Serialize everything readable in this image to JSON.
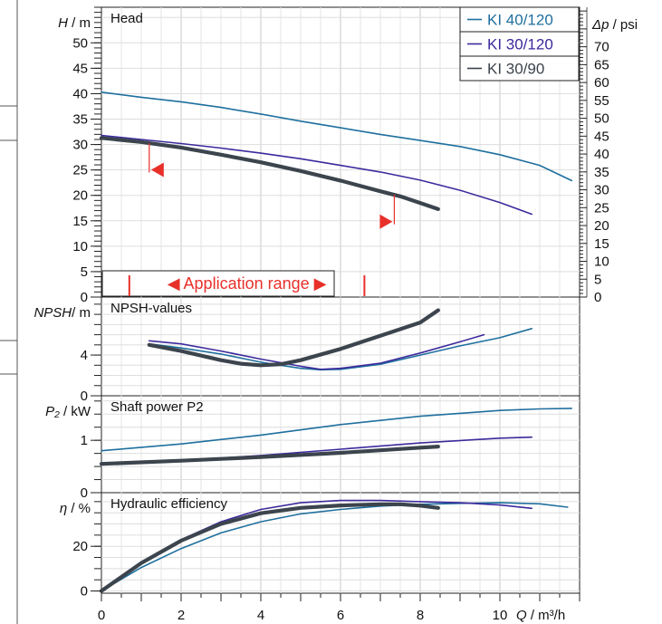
{
  "chart_data": {
    "type": "line",
    "x_axis": {
      "label": "Q / m³/h",
      "label_var": "Q",
      "label_unit": " / m³/h",
      "range": [
        0,
        12
      ],
      "ticks": [
        0,
        2,
        4,
        6,
        8,
        10
      ]
    },
    "legend": {
      "placement": "top-right",
      "entries": [
        {
          "name": "KI 40/120",
          "color": "#1f6f9e"
        },
        {
          "name": "KI 30/120",
          "color": "#3d2a9c"
        },
        {
          "name": "KI 30/90",
          "color": "#3c444d"
        }
      ]
    },
    "panels": [
      {
        "id": "head",
        "title": "Head",
        "ylabel_var": "H",
        "ylabel_unit": " / m",
        "ylim": [
          0,
          57
        ],
        "yticks": [
          0,
          5,
          10,
          15,
          20,
          25,
          30,
          35,
          40,
          45,
          50
        ],
        "right_axis": {
          "label_var": "Δp",
          "label_unit": " / psi",
          "factor": 1.422,
          "ticks": [
            0,
            5,
            10,
            15,
            20,
            25,
            30,
            35,
            40,
            45,
            50,
            55,
            60,
            65,
            70
          ]
        },
        "series": [
          {
            "name": "KI 40/120",
            "points": [
              [
                0,
                40.3
              ],
              [
                1,
                39.3
              ],
              [
                2,
                38.4
              ],
              [
                3,
                37.3
              ],
              [
                4,
                36.0
              ],
              [
                5,
                34.6
              ],
              [
                6,
                33.3
              ],
              [
                7,
                32.0
              ],
              [
                8,
                30.8
              ],
              [
                9,
                29.6
              ],
              [
                10,
                28.0
              ],
              [
                11,
                25.9
              ],
              [
                11.8,
                22.9
              ]
            ]
          },
          {
            "name": "KI 30/120",
            "points": [
              [
                0,
                31.8
              ],
              [
                1,
                31.0
              ],
              [
                2,
                30.2
              ],
              [
                3,
                29.3
              ],
              [
                4,
                28.3
              ],
              [
                5,
                27.2
              ],
              [
                6,
                25.9
              ],
              [
                7,
                24.6
              ],
              [
                8,
                23.0
              ],
              [
                9,
                21.0
              ],
              [
                10,
                18.6
              ],
              [
                10.8,
                16.3
              ]
            ]
          },
          {
            "name": "KI 30/90",
            "points": [
              [
                0,
                31.3
              ],
              [
                1,
                30.5
              ],
              [
                2,
                29.4
              ],
              [
                3,
                28.0
              ],
              [
                4,
                26.5
              ],
              [
                5,
                24.8
              ],
              [
                6,
                22.9
              ],
              [
                7,
                20.8
              ],
              [
                7.5,
                19.8
              ],
              [
                8,
                18.5
              ],
              [
                8.45,
                17.3
              ]
            ]
          }
        ],
        "markers": [
          {
            "x": 1.2,
            "y": 24.5,
            "dir": "left"
          },
          {
            "x": 7.35,
            "y": 14.3,
            "dir": "right"
          }
        ],
        "range_box": {
          "text": "Application range",
          "x_start": 0.7,
          "x_end": 6.6
        }
      },
      {
        "id": "npsh",
        "title": "NPSH-values",
        "ylabel_var": "NPSH",
        "ylabel_unit": "/ m",
        "ylim": [
          0,
          9.7
        ],
        "yticks": [
          0,
          4
        ],
        "series": [
          {
            "name": "KI 40/120",
            "points": [
              [
                1.2,
                5.1
              ],
              [
                2,
                4.7
              ],
              [
                3,
                4.1
              ],
              [
                4,
                3.3
              ],
              [
                5,
                2.7
              ],
              [
                5.5,
                2.55
              ],
              [
                6,
                2.6
              ],
              [
                7,
                3.1
              ],
              [
                8,
                4.0
              ],
              [
                9,
                4.9
              ],
              [
                10,
                5.7
              ],
              [
                10.8,
                6.6
              ]
            ]
          },
          {
            "name": "KI 30/120",
            "points": [
              [
                1.2,
                5.4
              ],
              [
                2,
                5.1
              ],
              [
                3,
                4.4
              ],
              [
                4,
                3.6
              ],
              [
                5,
                2.9
              ],
              [
                5.5,
                2.6
              ],
              [
                6,
                2.7
              ],
              [
                7,
                3.2
              ],
              [
                8,
                4.2
              ],
              [
                9,
                5.3
              ],
              [
                9.6,
                6.0
              ]
            ]
          },
          {
            "name": "KI 30/90",
            "points": [
              [
                1.2,
                5.0
              ],
              [
                2,
                4.4
              ],
              [
                3,
                3.5
              ],
              [
                3.5,
                3.15
              ],
              [
                4,
                3.0
              ],
              [
                4.5,
                3.1
              ],
              [
                5,
                3.5
              ],
              [
                6,
                4.6
              ],
              [
                7,
                5.9
              ],
              [
                8,
                7.2
              ],
              [
                8.45,
                8.4
              ]
            ]
          }
        ]
      },
      {
        "id": "power",
        "title": "Shaft power P2",
        "ylabel_var": "P₂",
        "ylabel_unit": " / kW",
        "ylim": [
          0,
          1.85
        ],
        "yticks": [
          0,
          1
        ],
        "series": [
          {
            "name": "KI 40/120",
            "points": [
              [
                0,
                0.8
              ],
              [
                2,
                0.93
              ],
              [
                4,
                1.1
              ],
              [
                6,
                1.3
              ],
              [
                8,
                1.46
              ],
              [
                10,
                1.57
              ],
              [
                11,
                1.6
              ],
              [
                11.8,
                1.61
              ]
            ]
          },
          {
            "name": "KI 30/120",
            "points": [
              [
                0,
                0.55
              ],
              [
                2,
                0.61
              ],
              [
                4,
                0.71
              ],
              [
                6,
                0.83
              ],
              [
                8,
                0.95
              ],
              [
                10,
                1.04
              ],
              [
                10.8,
                1.06
              ]
            ]
          },
          {
            "name": "KI 30/90",
            "points": [
              [
                0,
                0.55
              ],
              [
                2,
                0.61
              ],
              [
                4,
                0.68
              ],
              [
                6,
                0.76
              ],
              [
                8,
                0.86
              ],
              [
                8.45,
                0.88
              ]
            ]
          }
        ]
      },
      {
        "id": "efficiency",
        "title": "Hydraulic efficiency",
        "ylabel_var": "η",
        "ylabel_unit": " / %",
        "ylim": [
          -1,
          44
        ],
        "yticks": [
          0,
          20
        ],
        "series": [
          {
            "name": "KI 40/120",
            "points": [
              [
                0,
                0
              ],
              [
                1,
                10.5
              ],
              [
                2,
                19
              ],
              [
                3,
                26
              ],
              [
                4,
                31
              ],
              [
                5,
                34.5
              ],
              [
                6,
                36.5
              ],
              [
                7,
                38
              ],
              [
                8,
                38.8
              ],
              [
                9,
                39.2
              ],
              [
                10,
                39.5
              ],
              [
                11,
                39
              ],
              [
                11.7,
                37.5
              ]
            ]
          },
          {
            "name": "KI 30/120",
            "points": [
              [
                0,
                0
              ],
              [
                1,
                12.5
              ],
              [
                2,
                23
              ],
              [
                3,
                31
              ],
              [
                4,
                36.5
              ],
              [
                5,
                39.5
              ],
              [
                6,
                40.5
              ],
              [
                7,
                40.5
              ],
              [
                8,
                40
              ],
              [
                9,
                39.5
              ],
              [
                10,
                38.5
              ],
              [
                10.8,
                37
              ]
            ]
          },
          {
            "name": "KI 30/90",
            "points": [
              [
                0,
                0
              ],
              [
                1,
                12.5
              ],
              [
                2,
                22.5
              ],
              [
                3,
                30
              ],
              [
                4,
                34.8
              ],
              [
                5,
                37.2
              ],
              [
                6,
                38.3
              ],
              [
                7,
                38.8
              ],
              [
                7.5,
                38.8
              ],
              [
                8,
                38.2
              ],
              [
                8.45,
                37.2
              ]
            ]
          }
        ]
      }
    ]
  }
}
